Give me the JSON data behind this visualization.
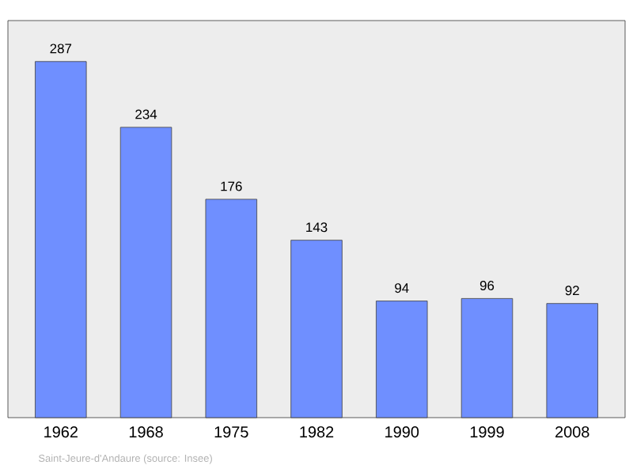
{
  "chart_data": {
    "type": "bar",
    "categories": [
      "1962",
      "1968",
      "1975",
      "1982",
      "1990",
      "1999",
      "2008"
    ],
    "values": [
      287,
      234,
      176,
      143,
      94,
      96,
      92
    ],
    "color": "#6f8fff",
    "ylim": [
      0,
      320
    ],
    "data_labels": true,
    "tick_labels": "x",
    "annotations": [
      "Saint-Jeure-d'Andaure    (source: Insee)"
    ]
  }
}
